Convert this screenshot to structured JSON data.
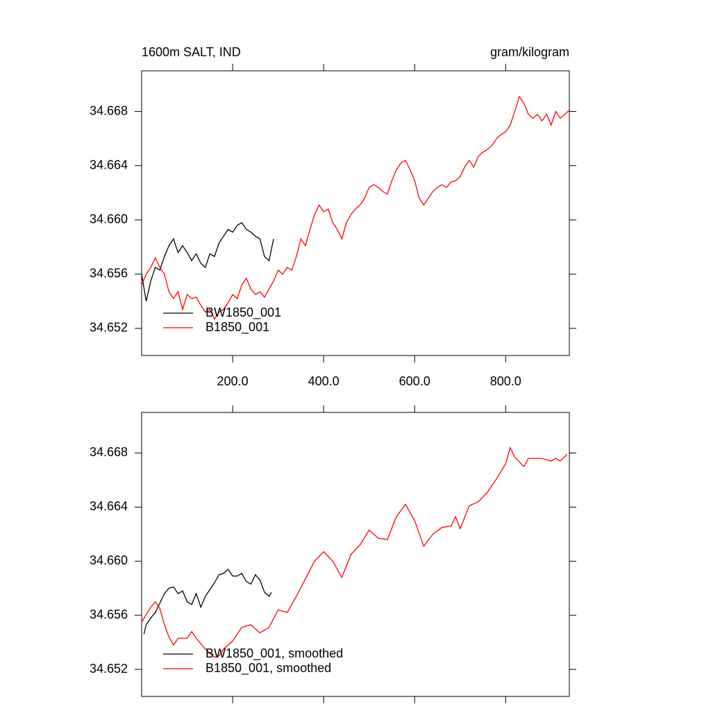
{
  "chart_data": [
    {
      "type": "line",
      "left_title": "1600m SALT, IND",
      "right_title": "gram/kilogram",
      "xlim": [
        0,
        940
      ],
      "ylim": [
        34.65,
        34.671
      ],
      "xticks": [
        {
          "value": 200,
          "label": "200.0"
        },
        {
          "value": 400,
          "label": "400.0"
        },
        {
          "value": 600,
          "label": "600.0"
        },
        {
          "value": 800,
          "label": "800.0"
        }
      ],
      "xtick_labels": true,
      "yticks": [
        34.652,
        34.656,
        {
          "value": 34.66,
          "label": "34.660"
        },
        34.664,
        34.668
      ],
      "legend": "lower left",
      "series": [
        {
          "name": "BW1850_001",
          "color": "#000000",
          "x": [
            0,
            10,
            20,
            30,
            40,
            50,
            60,
            70,
            80,
            90,
            100,
            110,
            120,
            130,
            140,
            150,
            160,
            170,
            180,
            190,
            200,
            210,
            220,
            230,
            240,
            250,
            260,
            270,
            280,
            290
          ],
          "values": [
            34.656,
            34.654,
            34.6555,
            34.6565,
            34.6563,
            34.6573,
            34.6581,
            34.6586,
            34.6576,
            34.6581,
            34.6576,
            34.657,
            34.6575,
            34.6568,
            34.6565,
            34.6575,
            34.6573,
            34.6583,
            34.6588,
            34.6593,
            34.6591,
            34.6596,
            34.6598,
            34.6593,
            34.6591,
            34.6588,
            34.6586,
            34.6573,
            34.657,
            34.6586
          ]
        },
        {
          "name": "B1850_001",
          "color": "#ff0000",
          "x": [
            0,
            10,
            20,
            30,
            40,
            50,
            60,
            70,
            80,
            90,
            100,
            110,
            120,
            130,
            140,
            150,
            160,
            170,
            180,
            190,
            200,
            210,
            220,
            230,
            240,
            250,
            260,
            270,
            280,
            290,
            300,
            310,
            320,
            330,
            340,
            350,
            360,
            370,
            380,
            390,
            400,
            410,
            420,
            430,
            440,
            450,
            460,
            470,
            480,
            490,
            500,
            510,
            520,
            530,
            540,
            550,
            560,
            570,
            580,
            590,
            600,
            610,
            620,
            630,
            640,
            650,
            660,
            670,
            680,
            690,
            700,
            710,
            720,
            730,
            740,
            750,
            760,
            770,
            780,
            790,
            800,
            810,
            820,
            830,
            840,
            850,
            860,
            870,
            880,
            890,
            900,
            910,
            920,
            930,
            940
          ],
          "values": [
            34.6552,
            34.656,
            34.6565,
            34.6572,
            34.6565,
            34.656,
            34.6547,
            34.6542,
            34.6547,
            34.6534,
            34.6545,
            34.6542,
            34.6543,
            34.6537,
            34.6532,
            34.6534,
            34.6527,
            34.6532,
            34.6534,
            34.6539,
            34.6545,
            34.6542,
            34.6552,
            34.6557,
            34.6549,
            34.6545,
            34.6547,
            34.6543,
            34.6549,
            34.6555,
            34.6563,
            34.656,
            34.6565,
            34.6563,
            34.6573,
            34.6586,
            34.6581,
            34.6593,
            34.6604,
            34.6611,
            34.6606,
            34.6608,
            34.6598,
            34.6593,
            34.6586,
            34.6598,
            34.6604,
            34.6608,
            34.6611,
            34.6616,
            34.6624,
            34.6626,
            34.6624,
            34.6621,
            34.6619,
            34.6629,
            34.6637,
            34.6642,
            34.6644,
            34.6637,
            34.6629,
            34.6616,
            34.6611,
            34.6616,
            34.6621,
            34.6624,
            34.6626,
            34.6624,
            34.6628,
            34.6629,
            34.6632,
            34.6639,
            34.6644,
            34.6639,
            34.6647,
            34.665,
            34.6652,
            34.6655,
            34.666,
            34.6663,
            34.6665,
            34.667,
            34.668,
            34.6691,
            34.6686,
            34.6678,
            34.6675,
            34.6678,
            34.6673,
            34.6678,
            34.667,
            34.668,
            34.6675,
            34.6678,
            34.6681
          ]
        }
      ]
    },
    {
      "type": "line",
      "xlim": [
        0,
        940
      ],
      "ylim": [
        34.65,
        34.671
      ],
      "xticks": [
        {
          "value": 200,
          "label": "200.0"
        },
        {
          "value": 400,
          "label": "400.0"
        },
        {
          "value": 600,
          "label": "600.0"
        },
        {
          "value": 800,
          "label": "800.0"
        }
      ],
      "xtick_labels": false,
      "yticks": [
        34.652,
        34.656,
        {
          "value": 34.66,
          "label": "34.660"
        },
        34.664,
        34.668
      ],
      "legend": "lower left",
      "series": [
        {
          "name": "BW1850_001, smoothed",
          "color": "#000000",
          "x": [
            5,
            10,
            20,
            30,
            40,
            50,
            60,
            70,
            80,
            90,
            100,
            110,
            120,
            130,
            140,
            150,
            160,
            170,
            180,
            190,
            200,
            210,
            220,
            230,
            240,
            250,
            260,
            270,
            280,
            285
          ],
          "values": [
            34.6546,
            34.6553,
            34.6558,
            34.6562,
            34.6569,
            34.6576,
            34.658,
            34.6581,
            34.6576,
            34.6578,
            34.657,
            34.6568,
            34.6576,
            34.6566,
            34.6574,
            34.6579,
            34.6584,
            34.659,
            34.6591,
            34.6594,
            34.6589,
            34.6589,
            34.6591,
            34.6585,
            34.6583,
            34.659,
            34.6586,
            34.6577,
            34.6574,
            34.6577
          ]
        },
        {
          "name": "B1850_001, smoothed",
          "color": "#ff0000",
          "x": [
            0,
            20,
            30,
            40,
            50,
            60,
            70,
            80,
            100,
            110,
            120,
            140,
            160,
            170,
            180,
            200,
            220,
            240,
            260,
            280,
            300,
            320,
            340,
            360,
            380,
            400,
            420,
            440,
            460,
            480,
            500,
            520,
            540,
            560,
            580,
            600,
            620,
            640,
            660,
            680,
            690,
            700,
            720,
            740,
            760,
            780,
            800,
            810,
            820,
            840,
            850,
            880,
            900,
            910,
            920,
            935
          ],
          "values": [
            34.6555,
            34.6566,
            34.657,
            34.6565,
            34.6553,
            34.6544,
            34.6538,
            34.6543,
            34.6543,
            34.6548,
            34.6543,
            34.6535,
            34.6529,
            34.653,
            34.6535,
            34.6541,
            34.6551,
            34.6553,
            34.6547,
            34.6551,
            34.6564,
            34.6562,
            34.6574,
            34.6587,
            34.66,
            34.6607,
            34.66,
            34.6588,
            34.6605,
            34.6612,
            34.6623,
            34.6617,
            34.6616,
            34.6633,
            34.6642,
            34.663,
            34.6611,
            34.662,
            34.6625,
            34.6626,
            34.6633,
            34.6624,
            34.6641,
            34.6644,
            34.6651,
            34.6661,
            34.6672,
            34.6684,
            34.6677,
            34.667,
            34.6676,
            34.6676,
            34.6674,
            34.6676,
            34.6674,
            34.6679
          ]
        }
      ]
    }
  ]
}
